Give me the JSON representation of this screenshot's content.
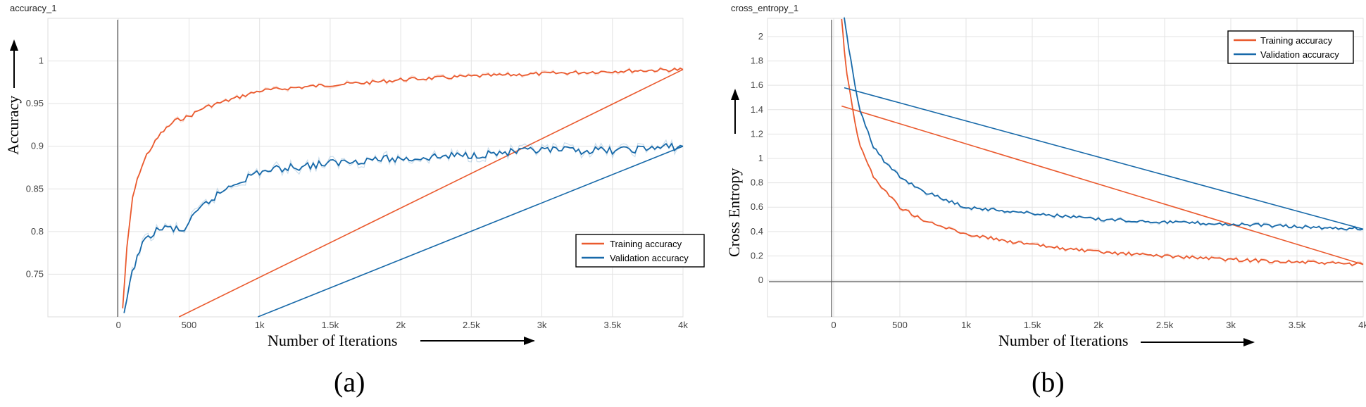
{
  "chart_data": [
    {
      "type": "line",
      "title": "accuracy_1",
      "xlabel": "Number of Iterations",
      "ylabel": "Accuracy",
      "caption": "(a)",
      "xlim": [
        -500,
        4000
      ],
      "ylim": [
        0.7,
        1.05
      ],
      "x_ticks": [
        0,
        500,
        1000,
        1500,
        2000,
        2500,
        3000,
        3500,
        4000
      ],
      "x_tick_labels": [
        "0",
        "500",
        "1k",
        "1.5k",
        "2k",
        "2.5k",
        "3k",
        "3.5k",
        "4k"
      ],
      "y_ticks": [
        0.75,
        0.8,
        0.85,
        0.9,
        0.95,
        1
      ],
      "y_tick_labels": [
        "0.75",
        "0.8",
        "0.85",
        "0.9",
        "0.95",
        "1"
      ],
      "grid": true,
      "legend_position": "bottom-right",
      "series": [
        {
          "name": "Training accuracy",
          "color": "#ea5a2e",
          "x": [
            30,
            60,
            100,
            150,
            200,
            300,
            400,
            500,
            600,
            800,
            1000,
            1200,
            1500,
            1800,
            2000,
            2500,
            3000,
            3500,
            4000
          ],
          "y": [
            0.71,
            0.78,
            0.84,
            0.87,
            0.89,
            0.915,
            0.93,
            0.935,
            0.945,
            0.955,
            0.965,
            0.968,
            0.972,
            0.975,
            0.978,
            0.982,
            0.985,
            0.988,
            0.99
          ]
        },
        {
          "name": "Validation accuracy",
          "color": "#1769a9",
          "x": [
            40,
            80,
            150,
            250,
            350,
            450,
            500,
            600,
            800,
            1000,
            1200,
            1500,
            1800,
            2000,
            2500,
            3000,
            3500,
            4000
          ],
          "y": [
            0.7,
            0.74,
            0.78,
            0.8,
            0.805,
            0.8,
            0.81,
            0.83,
            0.855,
            0.87,
            0.875,
            0.88,
            0.885,
            0.885,
            0.89,
            0.895,
            0.895,
            0.9
          ]
        }
      ]
    },
    {
      "type": "line",
      "title": "cross_entropy_1",
      "xlabel": "Number of Iterations",
      "ylabel": "Cross Entropy",
      "caption": "(b)",
      "xlim": [
        -500,
        4000
      ],
      "ylim": [
        -0.3,
        2.15
      ],
      "x_ticks": [
        0,
        500,
        1000,
        1500,
        2000,
        2500,
        3000,
        3500,
        4000
      ],
      "x_tick_labels": [
        "0",
        "500",
        "1k",
        "1.5k",
        "2k",
        "2.5k",
        "3k",
        "3.5k",
        "4k"
      ],
      "y_ticks": [
        0,
        0.2,
        0.4,
        0.6,
        0.8,
        1,
        1.2,
        1.4,
        1.6,
        1.8,
        2
      ],
      "y_tick_labels": [
        "0",
        "0.2",
        "0.4",
        "0.6",
        "0.8",
        "1",
        "1.2",
        "1.4",
        "1.6",
        "1.8",
        "2"
      ],
      "grid": true,
      "legend_position": "top-right",
      "series": [
        {
          "name": "Training accuracy",
          "color": "#ea5a2e",
          "x": [
            60,
            80,
            100,
            130,
            160,
            200,
            300,
            400,
            500,
            700,
            1000,
            1500,
            2000,
            2500,
            3000,
            3500,
            4000
          ],
          "y": [
            2.15,
            1.9,
            1.7,
            1.5,
            1.3,
            1.1,
            0.85,
            0.72,
            0.6,
            0.48,
            0.38,
            0.29,
            0.23,
            0.2,
            0.17,
            0.15,
            0.13
          ]
        },
        {
          "name": "Validation accuracy",
          "color": "#1769a9",
          "x": [
            80,
            100,
            130,
            160,
            200,
            300,
            400,
            500,
            700,
            1000,
            1500,
            2000,
            2500,
            3000,
            3500,
            4000
          ],
          "y": [
            2.15,
            2.0,
            1.8,
            1.6,
            1.4,
            1.1,
            0.95,
            0.85,
            0.72,
            0.6,
            0.55,
            0.5,
            0.48,
            0.46,
            0.44,
            0.42
          ]
        }
      ]
    }
  ]
}
